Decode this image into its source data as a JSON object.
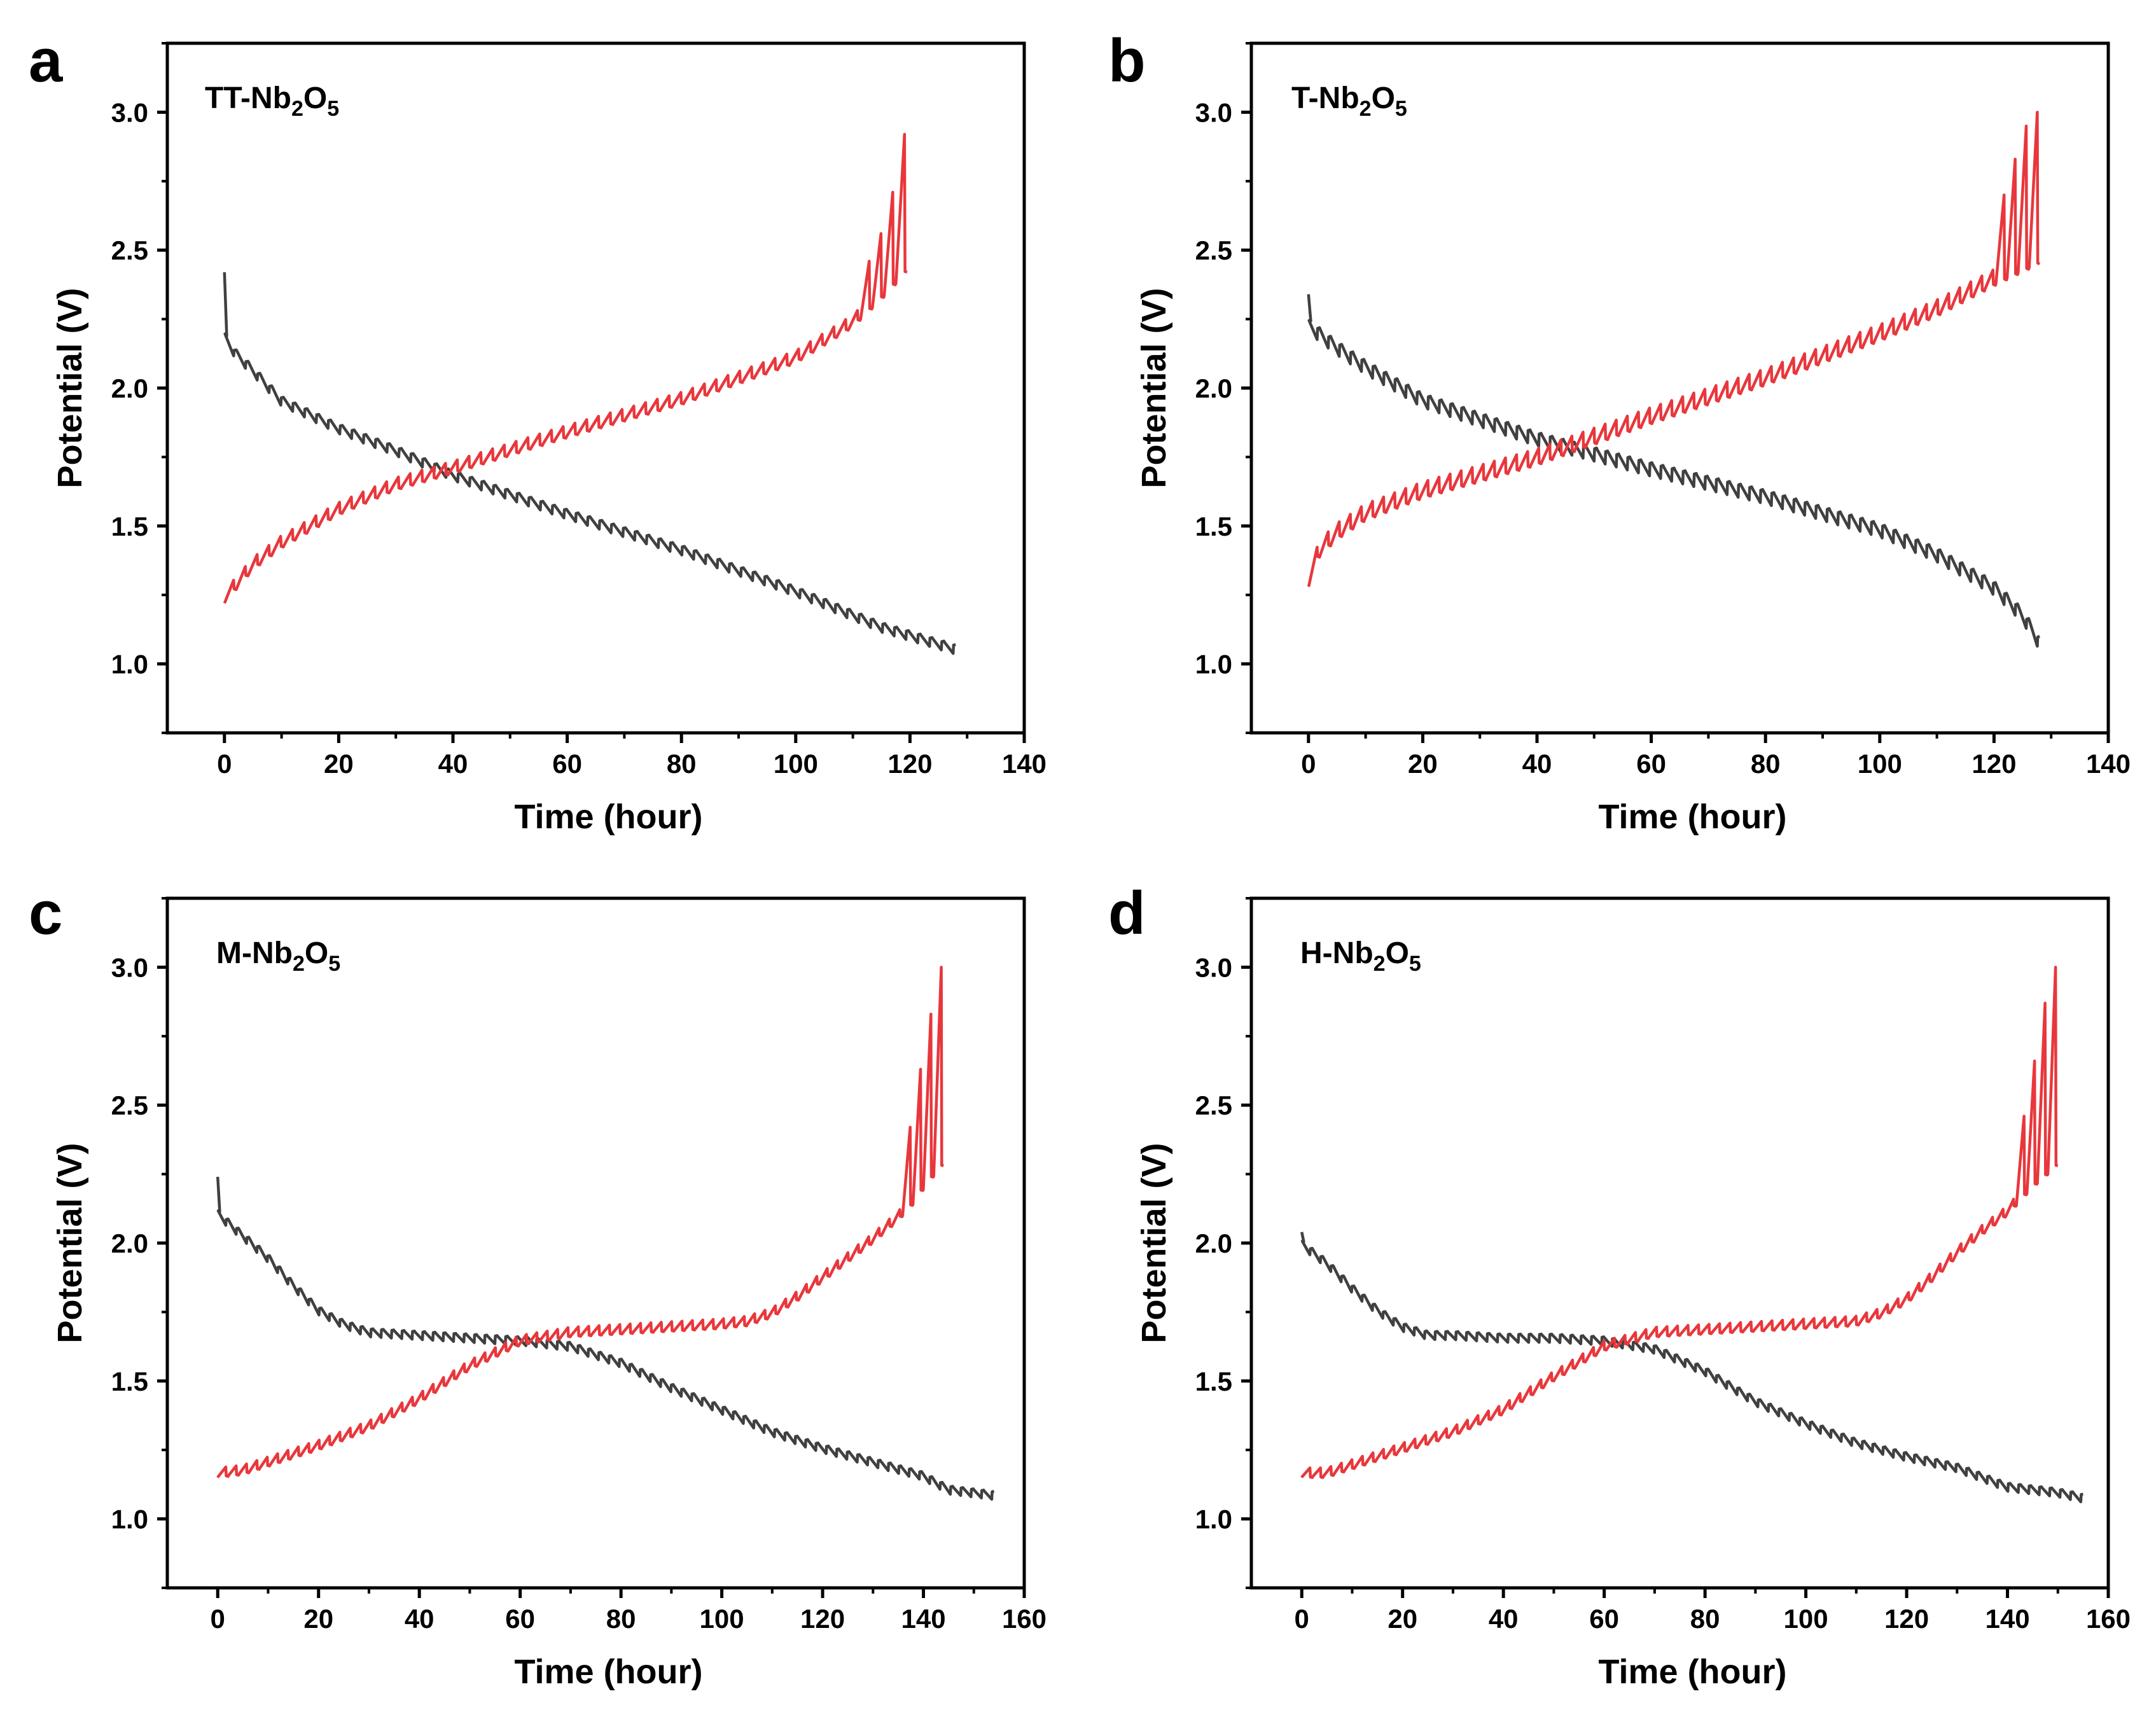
{
  "figure": {
    "colors": {
      "discharge": "#404040",
      "charge": "#e8373c",
      "axis": "#000000"
    }
  },
  "chart_data": [
    {
      "type": "line",
      "panel": "a",
      "sample_label": {
        "prefix": "TT-Nb",
        "sub1": "2",
        "mid": "O",
        "sub2": "5"
      },
      "xlabel": "Time (hour)",
      "ylabel": "Potential (V)",
      "xlim": [
        -10,
        140
      ],
      "ylim": [
        0.75,
        3.25
      ],
      "xticks": [
        0,
        20,
        40,
        60,
        80,
        100,
        120,
        140
      ],
      "yticks": [
        1.0,
        1.5,
        2.0,
        2.5,
        3.0
      ],
      "ytick_labels": [
        "1.0",
        "1.5",
        "2.0",
        "2.5",
        "3.0"
      ],
      "series": [
        {
          "name": "discharge",
          "color": "#404040",
          "t_end": 128,
          "pulses": 62,
          "amplitude": 0.035,
          "start_spike": 2.42,
          "anchors": {
            "t": [
              0,
              2,
              5,
              10,
              20,
              30,
              40,
              60,
              80,
              100,
              115,
              128
            ],
            "v": [
              2.2,
              2.14,
              2.08,
              1.97,
              1.87,
              1.79,
              1.7,
              1.56,
              1.43,
              1.28,
              1.15,
              1.07
            ]
          }
        },
        {
          "name": "charge",
          "color": "#e8373c",
          "t_end": 119.5,
          "pulses": 58,
          "amplitude": 0.045,
          "end_spike": 2.92,
          "top_spikes": [
            {
              "t": 113,
              "v": 2.46
            },
            {
              "t": 115,
              "v": 2.56
            },
            {
              "t": 117,
              "v": 2.71
            }
          ],
          "anchors": {
            "t": [
              0,
              5,
              10,
              20,
              30,
              40,
              60,
              80,
              100,
              110,
              115,
              119.5
            ],
            "v": [
              1.22,
              1.34,
              1.42,
              1.54,
              1.63,
              1.69,
              1.82,
              1.94,
              2.09,
              2.22,
              2.32,
              2.42
            ]
          }
        }
      ]
    },
    {
      "type": "line",
      "panel": "b",
      "sample_label": {
        "prefix": "T-Nb",
        "sub1": "2",
        "mid": "O",
        "sub2": "5"
      },
      "xlabel": "Time (hour)",
      "ylabel": "Potential (V)",
      "xlim": [
        -10,
        140
      ],
      "ylim": [
        0.75,
        3.25
      ],
      "xticks": [
        0,
        20,
        40,
        60,
        80,
        100,
        120,
        140
      ],
      "yticks": [
        1.0,
        1.5,
        2.0,
        2.5,
        3.0
      ],
      "ytick_labels": [
        "1.0",
        "1.5",
        "2.0",
        "2.5",
        "3.0"
      ],
      "series": [
        {
          "name": "discharge",
          "color": "#404040",
          "t_end": 128,
          "pulses": 66,
          "amplitude": 0.05,
          "start_spike": 2.34,
          "anchors": {
            "t": [
              0,
              5,
              10,
              20,
              40,
              60,
              80,
              100,
              110,
              120,
              125,
              128
            ],
            "v": [
              2.25,
              2.17,
              2.1,
              1.98,
              1.84,
              1.73,
              1.63,
              1.51,
              1.42,
              1.3,
              1.2,
              1.1
            ]
          }
        },
        {
          "name": "charge",
          "color": "#e8373c",
          "t_end": 128,
          "pulses": 66,
          "amplitude": 0.06,
          "end_spike": 3.0,
          "top_spikes": [
            {
              "t": 121,
              "v": 2.7
            },
            {
              "t": 123,
              "v": 2.83
            },
            {
              "t": 125,
              "v": 2.95
            }
          ],
          "anchors": {
            "t": [
              0,
              2,
              5,
              10,
              20,
              40,
              60,
              80,
              100,
              110,
              120,
              125,
              128
            ],
            "v": [
              1.28,
              1.39,
              1.45,
              1.52,
              1.6,
              1.72,
              1.87,
              2.01,
              2.17,
              2.26,
              2.37,
              2.42,
              2.45
            ]
          }
        }
      ]
    },
    {
      "type": "line",
      "panel": "c",
      "sample_label": {
        "prefix": "M-Nb",
        "sub1": "2",
        "mid": "O",
        "sub2": "5"
      },
      "xlabel": "Time (hour)",
      "ylabel": "Potential (V)",
      "xlim": [
        -10,
        160
      ],
      "ylim": [
        0.75,
        3.25
      ],
      "xticks": [
        0,
        20,
        40,
        60,
        80,
        100,
        120,
        140,
        160
      ],
      "yticks": [
        1.0,
        1.5,
        2.0,
        2.5,
        3.0
      ],
      "ytick_labels": [
        "1.0",
        "1.5",
        "2.0",
        "2.5",
        "3.0"
      ],
      "series": [
        {
          "name": "discharge",
          "color": "#404040",
          "t_end": 154,
          "pulses": 75,
          "amplitude": 0.03,
          "start_spike": 2.24,
          "anchors": {
            "t": [
              0,
              5,
              10,
              15,
              20,
              25,
              30,
              40,
              50,
              60,
              70,
              80,
              90,
              100,
              110,
              120,
              130,
              140,
              145,
              154
            ],
            "v": [
              2.12,
              2.04,
              1.96,
              1.86,
              1.77,
              1.72,
              1.69,
              1.68,
              1.67,
              1.66,
              1.64,
              1.58,
              1.49,
              1.41,
              1.33,
              1.27,
              1.22,
              1.17,
              1.12,
              1.1
            ]
          }
        },
        {
          "name": "charge",
          "color": "#e8373c",
          "t_end": 144,
          "pulses": 70,
          "amplitude": 0.035,
          "end_spike": 3.0,
          "top_spikes": [
            {
              "t": 137,
              "v": 2.42
            },
            {
              "t": 139.5,
              "v": 2.63
            },
            {
              "t": 141.8,
              "v": 2.83
            }
          ],
          "anchors": {
            "t": [
              0,
              5,
              10,
              20,
              30,
              40,
              50,
              60,
              70,
              80,
              90,
              100,
              105,
              110,
              115,
              120,
              125,
              130,
              135,
              138,
              141,
              144
            ],
            "v": [
              1.15,
              1.16,
              1.19,
              1.25,
              1.32,
              1.42,
              1.54,
              1.63,
              1.66,
              1.67,
              1.68,
              1.69,
              1.7,
              1.73,
              1.79,
              1.86,
              1.93,
              2.0,
              2.08,
              2.14,
              2.22,
              2.28
            ]
          }
        }
      ]
    },
    {
      "type": "line",
      "panel": "d",
      "sample_label": {
        "prefix": "H-Nb",
        "sub1": "2",
        "mid": "O",
        "sub2": "5"
      },
      "xlabel": "Time (hour)",
      "ylabel": "Potential (V)",
      "xlim": [
        -10,
        160
      ],
      "ylim": [
        0.75,
        3.25
      ],
      "xticks": [
        0,
        20,
        40,
        60,
        80,
        100,
        120,
        140,
        160
      ],
      "yticks": [
        1.0,
        1.5,
        2.0,
        2.5,
        3.0
      ],
      "ytick_labels": [
        "1.0",
        "1.5",
        "2.0",
        "2.5",
        "3.0"
      ],
      "series": [
        {
          "name": "discharge",
          "color": "#404040",
          "t_end": 155,
          "pulses": 75,
          "amplitude": 0.03,
          "start_spike": 2.04,
          "anchors": {
            "t": [
              0,
              5,
              10,
              15,
              20,
              25,
              30,
              40,
              50,
              60,
              70,
              80,
              90,
              100,
              110,
              120,
              130,
              140,
              150,
              155
            ],
            "v": [
              2.01,
              1.94,
              1.85,
              1.77,
              1.71,
              1.68,
              1.68,
              1.67,
              1.67,
              1.66,
              1.63,
              1.55,
              1.44,
              1.36,
              1.29,
              1.24,
              1.2,
              1.13,
              1.11,
              1.09
            ]
          }
        },
        {
          "name": "charge",
          "color": "#e8373c",
          "t_end": 150,
          "pulses": 72,
          "amplitude": 0.035,
          "end_spike": 3.0,
          "top_spikes": [
            {
              "t": 143,
              "v": 2.46
            },
            {
              "t": 145.5,
              "v": 2.66
            },
            {
              "t": 147.8,
              "v": 2.87
            }
          ],
          "anchors": {
            "t": [
              0,
              5,
              10,
              20,
              30,
              40,
              50,
              60,
              70,
              80,
              90,
              100,
              110,
              115,
              120,
              125,
              130,
              135,
              140,
              145,
              150
            ],
            "v": [
              1.15,
              1.15,
              1.18,
              1.24,
              1.3,
              1.38,
              1.5,
              1.61,
              1.66,
              1.67,
              1.68,
              1.69,
              1.7,
              1.73,
              1.78,
              1.86,
              1.95,
              2.03,
              2.1,
              2.2,
              2.28
            ]
          }
        }
      ]
    }
  ]
}
